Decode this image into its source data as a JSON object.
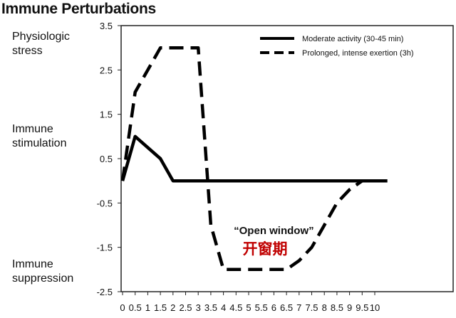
{
  "chart_data": {
    "type": "line",
    "title": "Immune Perturbations",
    "side_labels": [
      {
        "line1": "Physiologic",
        "line2": "stress",
        "y": 3.2
      },
      {
        "line1": "Immune",
        "line2": "stimulation",
        "y": 1.1
      },
      {
        "line1": "Immune",
        "line2": "suppression",
        "y": -2.1
      }
    ],
    "ylim": [
      -2.5,
      3.5
    ],
    "yticks": [
      "3.5",
      "2.5",
      "1.5",
      "0.5",
      "-0.5",
      "-1.5",
      "-2.5"
    ],
    "ytick_values": [
      3.5,
      2.5,
      1.5,
      0.5,
      -0.5,
      -1.5,
      -2.5
    ],
    "xticks": [
      "0",
      "0.5",
      "1",
      "1.5",
      "2",
      "2.5",
      "3",
      "3.5",
      "4",
      "4.5",
      "5",
      "5.5",
      "6",
      "6.5",
      "7",
      "7.5",
      "8",
      "8.5",
      "9",
      "9.5",
      "10"
    ],
    "xlim": [
      0,
      10.5
    ],
    "legend_position": "top-right",
    "series": [
      {
        "name": "Moderate activity (30-45 min)",
        "style": "solid",
        "color": "#000000",
        "x": [
          0,
          0.5,
          1.5,
          2,
          10.5
        ],
        "y": [
          0,
          1.0,
          0.5,
          0,
          0
        ]
      },
      {
        "name": "Prolonged, intense exertion (3h)",
        "style": "dashed",
        "color": "#000000",
        "x": [
          0,
          0.5,
          1.5,
          3,
          3.5,
          4,
          4.5,
          5,
          5.5,
          6,
          6.5,
          7,
          7.5,
          8,
          8.5,
          9,
          9.5
        ],
        "y": [
          0,
          2.0,
          3.0,
          3.0,
          -1.0,
          -2.0,
          -2.0,
          -2.0,
          -2.0,
          -2.0,
          -2.0,
          -1.8,
          -1.5,
          -1.0,
          -0.5,
          -0.2,
          0
        ]
      }
    ],
    "annotations": {
      "english": "“Open window”",
      "chinese": "开窗期",
      "chinese_color": "#c00000",
      "english_x": 6.0,
      "english_y": -1.2,
      "chinese_x": 5.65,
      "chinese_y": -1.65
    }
  }
}
